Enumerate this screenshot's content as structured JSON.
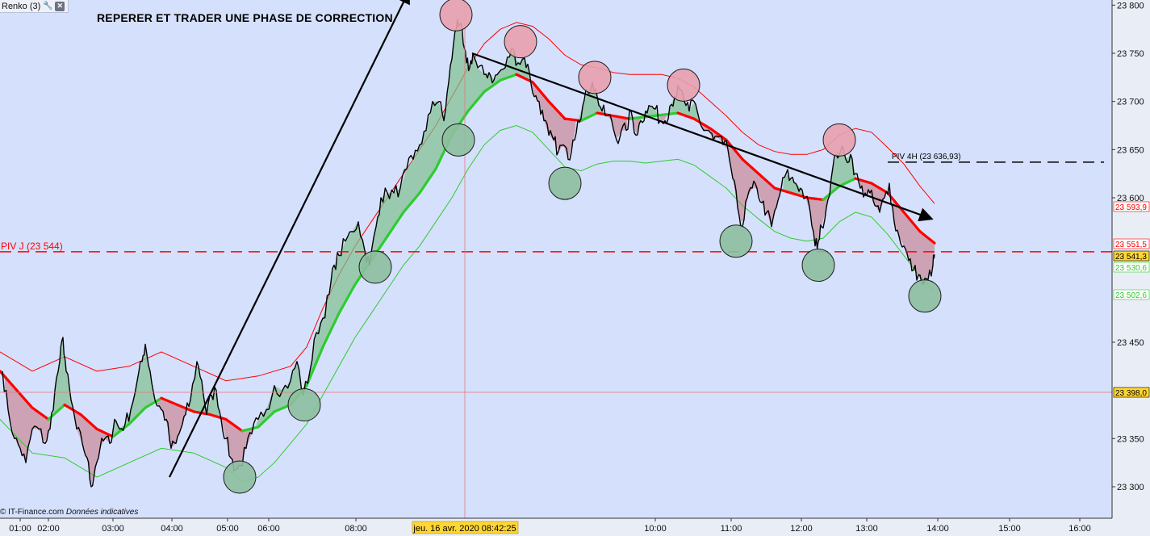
{
  "toolbar": {
    "label": "Renko (3)",
    "tool_icon": "wrench-icon",
    "tool_glyph": "🔧",
    "close_icon": "close-icon",
    "close_glyph": "✕"
  },
  "annotation_title": "REPERER ET TRADER UNE PHASE DE CORRECTION",
  "credit": {
    "source": "© IT-Finance.com",
    "note": "Données indicatives"
  },
  "colors": {
    "background": "#d5e0fc",
    "price": "#000000",
    "ema_up": "#2ecc2e",
    "ema_down": "#ff0000",
    "band": "#ff0000",
    "pivot_j": "#ff0000",
    "pivot_4h": "#000000",
    "top_marker": "#e8a0ad",
    "bottom_marker": "#8dbf9f"
  },
  "chart_data": {
    "type": "line",
    "time_axis_labels": [
      "01:00",
      "02:00",
      "03:00",
      "04:00",
      "05:00",
      "06:00",
      "08:00",
      "10:00",
      "11:00",
      "12:00",
      "13:00",
      "14:00",
      "15:00",
      "16:00"
    ],
    "y_axis": {
      "ticks": [
        23300,
        23350,
        23450,
        23600,
        23650,
        23700,
        23750,
        23800
      ],
      "tick_labels": [
        "23 300",
        "23 350",
        "23 450",
        "23 600",
        "23 650",
        "23 700",
        "23 750",
        "23 800"
      ],
      "range": [
        23280,
        23805
      ]
    },
    "crosshair": {
      "time_label": "jeu. 16 avr. 2020 08:42:25",
      "price_label": "23 398,0",
      "price": 23398.0
    },
    "last_values": [
      {
        "label": "23 593,9",
        "value": 23593.9,
        "color": "#ff0000",
        "bg": "#ffffff"
      },
      {
        "label": "23 551,5",
        "value": 23551.5,
        "color": "#ff0000",
        "bg": "#ffffff"
      },
      {
        "label": "23 541,3",
        "value": 23541.3,
        "color": "#000000",
        "bg": "#ffd633"
      },
      {
        "label": "23 530,6",
        "value": 23530.6,
        "color": "#2ecc2e",
        "bg": "#ffffff"
      },
      {
        "label": "23 502,6",
        "value": 23502.6,
        "color": "#2ecc2e",
        "bg": "#ffffff"
      }
    ],
    "pivots": [
      {
        "label": "PIV J (23 544)",
        "value": 23544,
        "color": "#ff0000"
      },
      {
        "label": "PIV 4H (23 636,93)",
        "value": 23636.93,
        "color": "#000000"
      }
    ],
    "price_path": [
      [
        3,
        23420
      ],
      [
        10,
        23380
      ],
      [
        18,
        23350
      ],
      [
        25,
        23340
      ],
      [
        32,
        23325
      ],
      [
        40,
        23360
      ],
      [
        48,
        23360
      ],
      [
        56,
        23345
      ],
      [
        62,
        23360
      ],
      [
        68,
        23400
      ],
      [
        74,
        23430
      ],
      [
        78,
        23455
      ],
      [
        82,
        23420
      ],
      [
        88,
        23390
      ],
      [
        95,
        23360
      ],
      [
        102,
        23345
      ],
      [
        108,
        23330
      ],
      [
        113,
        23300
      ],
      [
        118,
        23320
      ],
      [
        124,
        23340
      ],
      [
        130,
        23350
      ],
      [
        136,
        23345
      ],
      [
        142,
        23370
      ],
      [
        148,
        23360
      ],
      [
        155,
        23365
      ],
      [
        162,
        23380
      ],
      [
        170,
        23410
      ],
      [
        176,
        23430
      ],
      [
        180,
        23448
      ],
      [
        186,
        23420
      ],
      [
        192,
        23390
      ],
      [
        200,
        23380
      ],
      [
        206,
        23370
      ],
      [
        212,
        23340
      ],
      [
        218,
        23345
      ],
      [
        224,
        23360
      ],
      [
        230,
        23375
      ],
      [
        236,
        23390
      ],
      [
        244,
        23430
      ],
      [
        250,
        23410
      ],
      [
        256,
        23375
      ],
      [
        262,
        23395
      ],
      [
        268,
        23400
      ],
      [
        274,
        23370
      ],
      [
        280,
        23350
      ],
      [
        286,
        23330
      ],
      [
        292,
        23318
      ],
      [
        298,
        23322
      ],
      [
        305,
        23340
      ],
      [
        312,
        23355
      ],
      [
        320,
        23370
      ],
      [
        330,
        23380
      ],
      [
        340,
        23405
      ],
      [
        350,
        23400
      ],
      [
        360,
        23410
      ],
      [
        368,
        23430
      ],
      [
        376,
        23395
      ],
      [
        384,
        23420
      ],
      [
        392,
        23460
      ],
      [
        400,
        23475
      ],
      [
        408,
        23500
      ],
      [
        414,
        23530
      ],
      [
        420,
        23540
      ],
      [
        428,
        23555
      ],
      [
        436,
        23565
      ],
      [
        444,
        23575
      ],
      [
        452,
        23545
      ],
      [
        458,
        23530
      ],
      [
        466,
        23570
      ],
      [
        472,
        23600
      ],
      [
        480,
        23605
      ],
      [
        488,
        23605
      ],
      [
        496,
        23610
      ],
      [
        504,
        23630
      ],
      [
        512,
        23640
      ],
      [
        520,
        23655
      ],
      [
        528,
        23670
      ],
      [
        536,
        23700
      ],
      [
        544,
        23700
      ],
      [
        550,
        23680
      ],
      [
        556,
        23720
      ],
      [
        562,
        23760
      ],
      [
        567,
        23785
      ],
      [
        570,
        23780
      ],
      [
        574,
        23760
      ],
      [
        578,
        23740
      ],
      [
        582,
        23735
      ],
      [
        586,
        23750
      ],
      [
        592,
        23735
      ],
      [
        600,
        23728
      ],
      [
        606,
        23730
      ],
      [
        612,
        23722
      ],
      [
        618,
        23730
      ],
      [
        626,
        23735
      ],
      [
        634,
        23755
      ],
      [
        642,
        23740
      ],
      [
        650,
        23745
      ],
      [
        656,
        23730
      ],
      [
        662,
        23705
      ],
      [
        668,
        23700
      ],
      [
        674,
        23680
      ],
      [
        680,
        23665
      ],
      [
        686,
        23660
      ],
      [
        692,
        23648
      ],
      [
        698,
        23655
      ],
      [
        704,
        23640
      ],
      [
        710,
        23660
      ],
      [
        716,
        23680
      ],
      [
        722,
        23695
      ],
      [
        728,
        23710
      ],
      [
        734,
        23720
      ],
      [
        740,
        23705
      ],
      [
        746,
        23690
      ],
      [
        752,
        23685
      ],
      [
        758,
        23680
      ],
      [
        764,
        23660
      ],
      [
        770,
        23670
      ],
      [
        776,
        23670
      ],
      [
        782,
        23690
      ],
      [
        788,
        23665
      ],
      [
        794,
        23680
      ],
      [
        800,
        23690
      ],
      [
        806,
        23695
      ],
      [
        812,
        23692
      ],
      [
        818,
        23680
      ],
      [
        824,
        23680
      ],
      [
        830,
        23695
      ],
      [
        836,
        23705
      ],
      [
        842,
        23712
      ],
      [
        848,
        23700
      ],
      [
        854,
        23690
      ],
      [
        860,
        23700
      ],
      [
        866,
        23683
      ],
      [
        872,
        23670
      ],
      [
        878,
        23670
      ],
      [
        884,
        23660
      ],
      [
        890,
        23663
      ],
      [
        896,
        23655
      ],
      [
        902,
        23650
      ],
      [
        908,
        23620
      ],
      [
        914,
        23590
      ],
      [
        920,
        23570
      ],
      [
        926,
        23600
      ],
      [
        932,
        23610
      ],
      [
        938,
        23610
      ],
      [
        944,
        23595
      ],
      [
        950,
        23585
      ],
      [
        956,
        23570
      ],
      [
        962,
        23590
      ],
      [
        968,
        23610
      ],
      [
        974,
        23625
      ],
      [
        980,
        23620
      ],
      [
        986,
        23615
      ],
      [
        992,
        23610
      ],
      [
        998,
        23600
      ],
      [
        1004,
        23585
      ],
      [
        1010,
        23550
      ],
      [
        1014,
        23555
      ],
      [
        1018,
        23570
      ],
      [
        1024,
        23590
      ],
      [
        1030,
        23620
      ],
      [
        1036,
        23645
      ],
      [
        1042,
        23650
      ],
      [
        1048,
        23640
      ],
      [
        1054,
        23645
      ],
      [
        1060,
        23625
      ],
      [
        1066,
        23610
      ],
      [
        1072,
        23605
      ],
      [
        1078,
        23605
      ],
      [
        1084,
        23592
      ],
      [
        1090,
        23585
      ],
      [
        1096,
        23600
      ],
      [
        1102,
        23615
      ],
      [
        1108,
        23575
      ],
      [
        1114,
        23560
      ],
      [
        1120,
        23550
      ],
      [
        1126,
        23535
      ],
      [
        1132,
        23525
      ],
      [
        1138,
        23520
      ],
      [
        1144,
        23510
      ],
      [
        1150,
        23515
      ],
      [
        1156,
        23530
      ],
      [
        1158,
        23541
      ]
    ],
    "ema_path": [
      [
        0,
        23420
      ],
      [
        40,
        23382
      ],
      [
        60,
        23370
      ],
      [
        80,
        23385
      ],
      [
        100,
        23375
      ],
      [
        120,
        23360
      ],
      [
        140,
        23352
      ],
      [
        160,
        23365
      ],
      [
        180,
        23382
      ],
      [
        200,
        23392
      ],
      [
        220,
        23385
      ],
      [
        240,
        23378
      ],
      [
        260,
        23375
      ],
      [
        280,
        23370
      ],
      [
        300,
        23358
      ],
      [
        320,
        23362
      ],
      [
        340,
        23378
      ],
      [
        360,
        23385
      ],
      [
        380,
        23405
      ],
      [
        400,
        23445
      ],
      [
        420,
        23480
      ],
      [
        440,
        23510
      ],
      [
        460,
        23535
      ],
      [
        480,
        23560
      ],
      [
        500,
        23585
      ],
      [
        520,
        23605
      ],
      [
        540,
        23630
      ],
      [
        560,
        23665
      ],
      [
        580,
        23690
      ],
      [
        600,
        23710
      ],
      [
        620,
        23722
      ],
      [
        640,
        23728
      ],
      [
        660,
        23720
      ],
      [
        680,
        23700
      ],
      [
        700,
        23682
      ],
      [
        720,
        23680
      ],
      [
        740,
        23688
      ],
      [
        760,
        23685
      ],
      [
        780,
        23682
      ],
      [
        800,
        23684
      ],
      [
        820,
        23686
      ],
      [
        840,
        23688
      ],
      [
        860,
        23682
      ],
      [
        880,
        23672
      ],
      [
        900,
        23660
      ],
      [
        920,
        23640
      ],
      [
        940,
        23625
      ],
      [
        960,
        23610
      ],
      [
        980,
        23605
      ],
      [
        1000,
        23600
      ],
      [
        1020,
        23598
      ],
      [
        1040,
        23612
      ],
      [
        1060,
        23620
      ],
      [
        1080,
        23615
      ],
      [
        1100,
        23605
      ],
      [
        1120,
        23585
      ],
      [
        1140,
        23565
      ],
      [
        1158,
        23553
      ]
    ],
    "upper_band_path": [
      [
        0,
        23440
      ],
      [
        40,
        23420
      ],
      [
        80,
        23435
      ],
      [
        120,
        23420
      ],
      [
        160,
        23425
      ],
      [
        200,
        23440
      ],
      [
        240,
        23425
      ],
      [
        280,
        23410
      ],
      [
        320,
        23415
      ],
      [
        360,
        23425
      ],
      [
        380,
        23445
      ],
      [
        400,
        23485
      ],
      [
        420,
        23520
      ],
      [
        440,
        23550
      ],
      [
        460,
        23575
      ],
      [
        480,
        23600
      ],
      [
        500,
        23625
      ],
      [
        520,
        23650
      ],
      [
        540,
        23675
      ],
      [
        560,
        23705
      ],
      [
        580,
        23735
      ],
      [
        600,
        23760
      ],
      [
        620,
        23775
      ],
      [
        640,
        23782
      ],
      [
        660,
        23778
      ],
      [
        680,
        23765
      ],
      [
        700,
        23748
      ],
      [
        720,
        23738
      ],
      [
        740,
        23735
      ],
      [
        760,
        23730
      ],
      [
        780,
        23728
      ],
      [
        800,
        23728
      ],
      [
        820,
        23728
      ],
      [
        840,
        23724
      ],
      [
        860,
        23715
      ],
      [
        880,
        23700
      ],
      [
        900,
        23685
      ],
      [
        920,
        23668
      ],
      [
        940,
        23655
      ],
      [
        960,
        23648
      ],
      [
        980,
        23645
      ],
      [
        1000,
        23645
      ],
      [
        1020,
        23650
      ],
      [
        1040,
        23665
      ],
      [
        1060,
        23672
      ],
      [
        1080,
        23668
      ],
      [
        1100,
        23652
      ],
      [
        1120,
        23635
      ],
      [
        1140,
        23612
      ],
      [
        1158,
        23594
      ]
    ],
    "lower_band_path": [
      [
        0,
        23370
      ],
      [
        40,
        23335
      ],
      [
        80,
        23330
      ],
      [
        120,
        23310
      ],
      [
        160,
        23325
      ],
      [
        200,
        23340
      ],
      [
        240,
        23335
      ],
      [
        280,
        23320
      ],
      [
        300,
        23305
      ],
      [
        320,
        23310
      ],
      [
        340,
        23325
      ],
      [
        360,
        23345
      ],
      [
        380,
        23365
      ],
      [
        400,
        23395
      ],
      [
        420,
        23425
      ],
      [
        440,
        23455
      ],
      [
        460,
        23480
      ],
      [
        480,
        23505
      ],
      [
        500,
        23530
      ],
      [
        520,
        23550
      ],
      [
        540,
        23575
      ],
      [
        560,
        23600
      ],
      [
        580,
        23630
      ],
      [
        600,
        23655
      ],
      [
        620,
        23670
      ],
      [
        640,
        23675
      ],
      [
        660,
        23668
      ],
      [
        680,
        23650
      ],
      [
        700,
        23632
      ],
      [
        720,
        23628
      ],
      [
        740,
        23635
      ],
      [
        760,
        23638
      ],
      [
        780,
        23638
      ],
      [
        800,
        23636
      ],
      [
        820,
        23638
      ],
      [
        840,
        23640
      ],
      [
        860,
        23634
      ],
      [
        880,
        23622
      ],
      [
        900,
        23610
      ],
      [
        920,
        23592
      ],
      [
        940,
        23578
      ],
      [
        960,
        23565
      ],
      [
        980,
        23558
      ],
      [
        1000,
        23555
      ],
      [
        1020,
        23558
      ],
      [
        1040,
        23575
      ],
      [
        1060,
        23585
      ],
      [
        1080,
        23580
      ],
      [
        1100,
        23562
      ],
      [
        1120,
        23540
      ],
      [
        1140,
        23518
      ],
      [
        1158,
        23503
      ]
    ],
    "tops": [
      [
        565,
        23790
      ],
      [
        645,
        23762
      ],
      [
        737,
        23725
      ],
      [
        847,
        23717
      ],
      [
        1040,
        23660
      ]
    ],
    "bottoms": [
      [
        568,
        23660
      ],
      [
        700,
        23615
      ],
      [
        912,
        23555
      ],
      [
        1014,
        23530
      ],
      [
        1146,
        23498
      ],
      [
        465,
        23528
      ],
      [
        377,
        23385
      ],
      [
        297,
        23310
      ]
    ],
    "trendlines": [
      {
        "from": [
          210,
          23310
        ],
        "to": [
          507,
          23815
        ],
        "name": "upward-impulse-arrow"
      },
      {
        "from": [
          585,
          23750
        ],
        "to": [
          1155,
          23578
        ],
        "name": "correction-channel-arrow"
      }
    ]
  }
}
